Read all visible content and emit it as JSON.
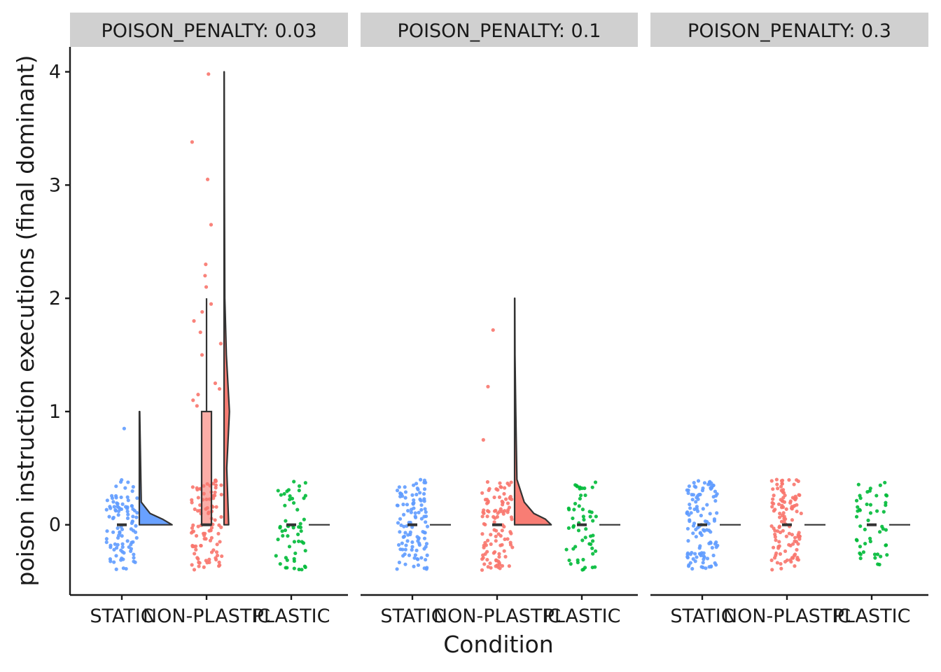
{
  "chart_data": {
    "type": "raincloud",
    "xlabel": "Condition",
    "ylabel": "poison instruction executions (final dominant)",
    "ylim": [
      -0.62,
      4.22
    ],
    "y_ticks": [
      0,
      1,
      2,
      3,
      4
    ],
    "categories": [
      "STATIC",
      "NON-PLASTIC",
      "PLASTIC"
    ],
    "colors": {
      "STATIC": "#619CFF",
      "NON-PLASTIC": "#F8766D",
      "PLASTIC": "#00BA38"
    },
    "panels": [
      {
        "label": "POISON_PENALTY: 0.03",
        "groups": [
          {
            "condition": "STATIC",
            "n": 100,
            "median": 0,
            "q1": 0,
            "q3": 0,
            "max": 1,
            "outliers": [
              0.85
            ],
            "density": [
              [
                0,
                0.85
              ],
              [
                0.05,
                0.6
              ],
              [
                0.1,
                0.28
              ],
              [
                0.2,
                0.05
              ],
              [
                1,
                0.01
              ]
            ]
          },
          {
            "condition": "NON-PLASTIC",
            "n": 100,
            "median": 0,
            "q1": 0,
            "q3": 1,
            "max": 4,
            "outliers": [
              1.05,
              1.1,
              1.15,
              1.2,
              1.25,
              1.5,
              1.6,
              1.7,
              1.8,
              1.88,
              1.95,
              2.1,
              2.2,
              2.3,
              2.65,
              3.05,
              3.38,
              3.98
            ],
            "density": [
              [
                0,
                0.12
              ],
              [
                0.2,
                0.1
              ],
              [
                0.5,
                0.07
              ],
              [
                1,
                0.14
              ],
              [
                1.5,
                0.06
              ],
              [
                2,
                0.02
              ],
              [
                3,
                0.01
              ],
              [
                4,
                0.005
              ]
            ]
          },
          {
            "condition": "PLASTIC",
            "n": 55,
            "median": 0,
            "q1": 0,
            "q3": 0,
            "max": 0,
            "outliers": [],
            "density": []
          }
        ]
      },
      {
        "label": "POISON_PENALTY: 0.1",
        "groups": [
          {
            "condition": "STATIC",
            "n": 110,
            "median": 0,
            "q1": 0,
            "q3": 0,
            "max": 0,
            "outliers": [],
            "density": []
          },
          {
            "condition": "NON-PLASTIC",
            "n": 110,
            "median": 0,
            "q1": 0,
            "q3": 0,
            "max": 2,
            "outliers": [
              0.75,
              1.22,
              1.72
            ],
            "density": [
              [
                0,
                0.95
              ],
              [
                0.05,
                0.8
              ],
              [
                0.1,
                0.5
              ],
              [
                0.2,
                0.25
              ],
              [
                0.4,
                0.06
              ],
              [
                1,
                0.03
              ],
              [
                1.5,
                0.01
              ],
              [
                2,
                0.005
              ]
            ]
          },
          {
            "condition": "PLASTIC",
            "n": 55,
            "median": 0,
            "q1": 0,
            "q3": 0,
            "max": 0,
            "outliers": [],
            "density": []
          }
        ]
      },
      {
        "label": "POISON_PENALTY: 0.3",
        "groups": [
          {
            "condition": "STATIC",
            "n": 120,
            "median": 0,
            "q1": 0,
            "q3": 0,
            "max": 0,
            "outliers": [],
            "density": []
          },
          {
            "condition": "NON-PLASTIC",
            "n": 120,
            "median": 0,
            "q1": 0,
            "q3": 0,
            "max": 0,
            "outliers": [],
            "density": []
          },
          {
            "condition": "PLASTIC",
            "n": 50,
            "median": 0,
            "q1": 0,
            "q3": 0,
            "max": 0,
            "outliers": [],
            "density": []
          }
        ]
      }
    ],
    "jitter_range": [
      -0.4,
      0.4
    ],
    "grid": false,
    "legend": "none"
  }
}
